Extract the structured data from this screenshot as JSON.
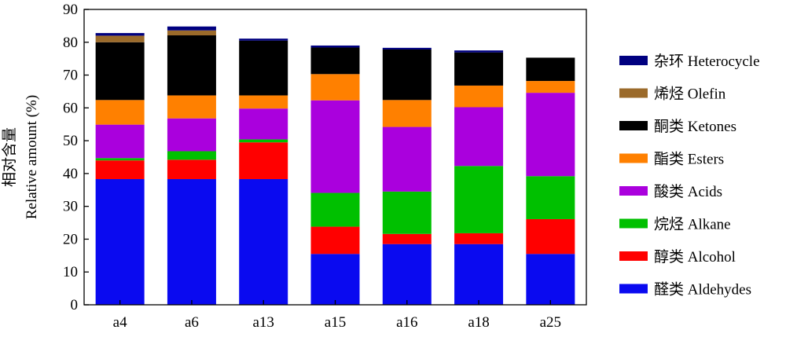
{
  "chart_data": {
    "type": "bar",
    "stacked": true,
    "categories": [
      "a4",
      "a6",
      "a13",
      "a15",
      "a16",
      "a18",
      "a25"
    ],
    "ylabel_cn": "相对含量",
    "ylabel_en": "Relative amount (%)",
    "xlabel": "",
    "ylim": [
      0,
      90
    ],
    "yticks": [
      0,
      10,
      20,
      30,
      40,
      50,
      60,
      70,
      80,
      90
    ],
    "grid": false,
    "legend_position": "right",
    "series": [
      {
        "name": "醛类 Aldehydes",
        "color": "#0a0af0",
        "values": [
          38.3,
          38.3,
          38.3,
          15.5,
          18.5,
          18.5,
          15.5
        ]
      },
      {
        "name": "醇类 Alcohol",
        "color": "#ff0000",
        "values": [
          5.7,
          5.9,
          11.2,
          8.3,
          3.1,
          3.3,
          10.6
        ]
      },
      {
        "name": "烷烃 Alkane",
        "color": "#00c000",
        "values": [
          0.7,
          2.6,
          0.9,
          10.3,
          12.9,
          20.5,
          13.1
        ]
      },
      {
        "name": "酸类 Acids",
        "color": "#aa00dd",
        "values": [
          10.2,
          10.0,
          9.4,
          28.2,
          19.7,
          17.9,
          25.4
        ]
      },
      {
        "name": "酯类 Esters",
        "color": "#ff8000",
        "values": [
          7.5,
          7.0,
          4.0,
          8.0,
          8.2,
          6.6,
          3.6
        ]
      },
      {
        "name": "酮类 Ketones",
        "color": "#000000",
        "values": [
          17.6,
          18.3,
          16.7,
          8.1,
          15.4,
          10.1,
          7.1
        ]
      },
      {
        "name": "烯烃 Olefin",
        "color": "#9b6a2a",
        "values": [
          2.0,
          1.5,
          0,
          0,
          0,
          0,
          0
        ]
      },
      {
        "name": "杂环 Heterocycle",
        "color": "#000080",
        "values": [
          0.8,
          1.2,
          0.6,
          0.6,
          0.5,
          0.6,
          0
        ]
      }
    ],
    "legend_order": [
      "杂环 Heterocycle",
      "烯烃 Olefin",
      "酮类 Ketones",
      "酯类 Esters",
      "酸类 Acids",
      "烷烃 Alkane",
      "醇类 Alcohol",
      "醛类 Aldehydes"
    ]
  }
}
